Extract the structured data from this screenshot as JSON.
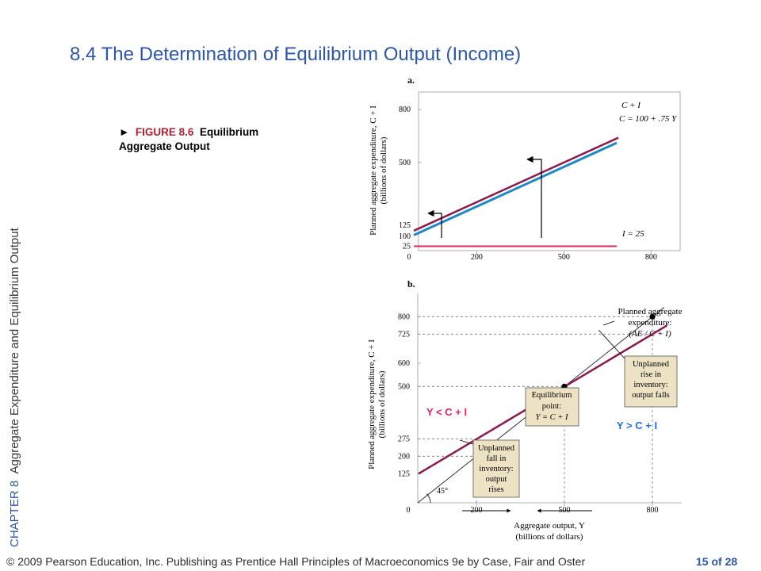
{
  "slide": {
    "title": "8.4 The Determination of Equilibrium Output (Income)",
    "chapter_prefix": "CHAPTER 8",
    "chapter_title": "Aggregate Expenditure and Equilibrium Output",
    "caption_arrow": "►",
    "caption_figure_no": "FIGURE 8.6",
    "caption_figure_name_1": "Equilibrium",
    "caption_figure_name_2": "Aggregate Output",
    "footer_copyright": "© 2009 Pearson Education, Inc. Publishing as Prentice Hall   Principles of Macroeconomics 9e by Case, Fair and Oster",
    "page_label": "15 of 28"
  },
  "colors": {
    "title_blue": "#2c56a8",
    "ci_line": "#8b1a4f",
    "c_line": "#1e88c8",
    "i_line": "#e0245e",
    "accent_blue": "#1e6fd9",
    "accent_red": "#e0245e",
    "callout_fill": "#ede3c4"
  },
  "chart_data": [
    {
      "type": "line",
      "panel_label": "a.",
      "ylabel_1": "Planned aggregate expenditure, C + I",
      "ylabel_2": "(billions of dollars)",
      "x_ticks": [
        "0",
        "200",
        "500",
        "800"
      ],
      "y_ticks": [
        "25",
        "100",
        "125",
        "500",
        "800"
      ],
      "series": [
        {
          "name": "C + I",
          "x": [
            0,
            900
          ],
          "y": [
            125,
            800
          ]
        },
        {
          "name": "C = 100 + .75 Y",
          "x": [
            0,
            900
          ],
          "y": [
            100,
            775
          ]
        },
        {
          "name": "I = 25",
          "x": [
            0,
            900
          ],
          "y": [
            25,
            25
          ]
        }
      ],
      "xlim": [
        0,
        900
      ],
      "ylim": [
        0,
        900
      ]
    },
    {
      "type": "line",
      "panel_label": "b.",
      "ylabel_1": "Planned aggregate expenditure, C + I",
      "ylabel_2": "(billions of dollars)",
      "xlabel_1": "Aggregate output, Y",
      "xlabel_2": "(billions of dollars)",
      "x_ticks": [
        "0",
        "200",
        "500",
        "800"
      ],
      "y_ticks": [
        "125",
        "200",
        "275",
        "500",
        "600",
        "725",
        "800"
      ],
      "angle_label": "45°",
      "series": [
        {
          "name": "C + I",
          "x": [
            0,
            900
          ],
          "y": [
            125,
            800
          ]
        },
        {
          "name": "45° line",
          "x": [
            0,
            900
          ],
          "y": [
            0,
            900
          ]
        }
      ],
      "points": [
        {
          "x": 200,
          "y": 200
        },
        {
          "x": 500,
          "y": 500
        },
        {
          "x": 800,
          "y": 800
        }
      ],
      "xlim": [
        0,
        900
      ],
      "ylim": [
        0,
        900
      ],
      "annotations": {
        "ae_label_1": "Planned aggregate",
        "ae_label_2": "expenditure:",
        "ae_label_3": "(AE / C + I)",
        "eq_box_1": "Equilibrium",
        "eq_box_2": "point:",
        "eq_box_3": "Y = C + I",
        "rise_box_1": "Unplanned",
        "rise_box_2": "rise in",
        "rise_box_3": "inventory:",
        "rise_box_4": "output falls",
        "fall_box_1": "Unplanned",
        "fall_box_2": "fall in",
        "fall_box_3": "inventory:",
        "fall_box_4": "output",
        "fall_box_5": "rises",
        "y_less": "Y < C + I",
        "y_greater": "Y > C + I"
      }
    }
  ]
}
